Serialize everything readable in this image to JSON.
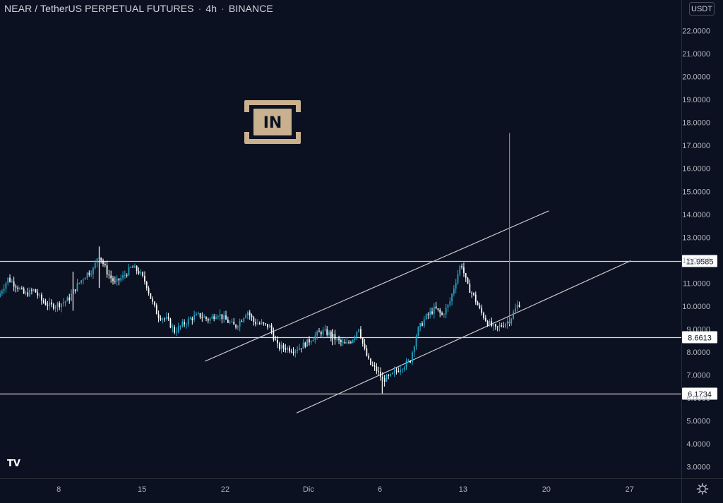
{
  "header": {
    "symbol": "NEAR / TetherUS PERPETUAL FUTURES",
    "interval": "4h",
    "exchange": "BINANCE",
    "separator": "·"
  },
  "currency_button": "USDT",
  "brand_logo_text": "IN",
  "colors": {
    "background": "#0b1120",
    "up": "#26a7c9",
    "down": "#ffffff",
    "lines": "#d8d8d8",
    "axis_text": "#b2b5be"
  },
  "chart_data": {
    "type": "candlestick",
    "ylim": [
      2.5,
      22.6
    ],
    "y_ticks": [
      "3.0000",
      "4.0000",
      "5.0000",
      "6.0000",
      "7.0000",
      "8.0000",
      "9.0000",
      "10.0000",
      "11.0000",
      "12.0000",
      "13.0000",
      "14.0000",
      "15.0000",
      "16.0000",
      "17.0000",
      "18.0000",
      "19.0000",
      "20.0000",
      "21.0000",
      "22.0000"
    ],
    "x_ticks": [
      {
        "label": "8",
        "day": 8
      },
      {
        "label": "15",
        "day": 15
      },
      {
        "label": "22",
        "day": 22
      },
      {
        "label": "Dic",
        "day": 29
      },
      {
        "label": "6",
        "day": 35
      },
      {
        "label": "13",
        "day": 42
      },
      {
        "label": "20",
        "day": 49
      },
      {
        "label": "27",
        "day": 56
      }
    ],
    "x_range_days": [
      3.06,
      60.35
    ],
    "horizontal_levels": [
      {
        "label": "11.9585",
        "value": 11.9585
      },
      {
        "label": "8.6613",
        "value": 8.6613
      },
      {
        "label": "6.1734",
        "value": 6.1734
      }
    ],
    "trendlines": [
      {
        "from": {
          "day": 20.3,
          "value": 7.6
        },
        "to": {
          "day": 49.2,
          "value": 14.15
        }
      },
      {
        "from": {
          "day": 28.0,
          "value": 5.35
        },
        "to": {
          "day": 56.1,
          "value": 11.98
        }
      }
    ],
    "price_path": [
      [
        3.06,
        10.4
      ],
      [
        3.9,
        11.2
      ],
      [
        4.6,
        10.9
      ],
      [
        5.3,
        10.5
      ],
      [
        6.1,
        10.7
      ],
      [
        6.8,
        10.2
      ],
      [
        7.5,
        10.0
      ],
      [
        8.3,
        10.1
      ],
      [
        9.0,
        10.3
      ],
      [
        9.7,
        10.9
      ],
      [
        10.5,
        11.4
      ],
      [
        11.1,
        11.6
      ],
      [
        11.5,
        12.3
      ],
      [
        12.3,
        11.4
      ],
      [
        12.9,
        11.0
      ],
      [
        13.6,
        11.3
      ],
      [
        14.3,
        11.7
      ],
      [
        14.9,
        11.5
      ],
      [
        15.5,
        11.0
      ],
      [
        16.0,
        10.2
      ],
      [
        16.5,
        9.6
      ],
      [
        17.3,
        9.4
      ],
      [
        17.9,
        8.9
      ],
      [
        18.6,
        9.2
      ],
      [
        19.4,
        9.5
      ],
      [
        20.0,
        9.6
      ],
      [
        20.8,
        9.4
      ],
      [
        21.5,
        9.7
      ],
      [
        22.2,
        9.4
      ],
      [
        23.0,
        9.1
      ],
      [
        23.5,
        9.4
      ],
      [
        24.0,
        9.8
      ],
      [
        24.6,
        9.3
      ],
      [
        25.3,
        9.2
      ],
      [
        25.9,
        9.1
      ],
      [
        26.6,
        8.2
      ],
      [
        27.2,
        8.2
      ],
      [
        27.8,
        8.1
      ],
      [
        28.4,
        8.2
      ],
      [
        29.0,
        8.4
      ],
      [
        29.7,
        8.7
      ],
      [
        30.3,
        8.9
      ],
      [
        30.9,
        8.8
      ],
      [
        31.6,
        8.5
      ],
      [
        32.3,
        8.3
      ],
      [
        32.9,
        8.6
      ],
      [
        33.4,
        9.1
      ],
      [
        33.8,
        8.2
      ],
      [
        34.3,
        7.5
      ],
      [
        34.9,
        7.2
      ],
      [
        35.4,
        6.8
      ],
      [
        36.0,
        6.9
      ],
      [
        36.6,
        7.2
      ],
      [
        37.1,
        7.4
      ],
      [
        37.7,
        7.6
      ],
      [
        38.3,
        8.9
      ],
      [
        39.0,
        9.5
      ],
      [
        39.8,
        9.9
      ],
      [
        40.4,
        9.6
      ],
      [
        41.0,
        10.1
      ],
      [
        41.6,
        11.2
      ],
      [
        42.0,
        11.9
      ],
      [
        42.5,
        10.9
      ],
      [
        43.0,
        10.5
      ],
      [
        43.6,
        9.8
      ],
      [
        44.2,
        9.3
      ],
      [
        44.9,
        9.0
      ],
      [
        45.5,
        9.2
      ],
      [
        46.1,
        9.4
      ],
      [
        46.8,
        10.1
      ]
    ],
    "spikes": [
      {
        "day": 11.4,
        "high": 12.6,
        "low": 10.8
      },
      {
        "day": 9.2,
        "high": 11.5,
        "low": 9.8
      },
      {
        "day": 31.0,
        "high": 9.0,
        "low": 8.3
      },
      {
        "day": 35.2,
        "high": 6.9,
        "low": 6.2
      },
      {
        "day": 45.9,
        "high": 17.55,
        "low": 9.2
      }
    ]
  }
}
